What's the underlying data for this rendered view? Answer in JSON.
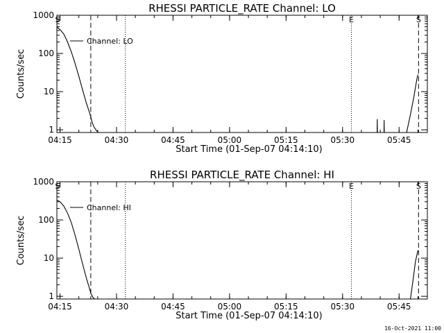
{
  "footer_timestamp": "16-Oct-2021 11:00",
  "chart_data": [
    {
      "type": "line",
      "title": "RHESSI PARTICLE_RATE Channel: LO",
      "xlabel": "Start Time (01-Sep-07 04:14:10)",
      "ylabel": "Counts/sec",
      "yscale": "log",
      "xlim": [
        "04:14:10",
        "05:52:30"
      ],
      "ylim": [
        0.85,
        1000
      ],
      "x_ticks": [
        "04:15",
        "04:30",
        "04:45",
        "05:00",
        "05:15",
        "05:30",
        "05:45"
      ],
      "y_ticks": [
        "1",
        "10",
        "100",
        "1000"
      ],
      "legend": "Channel: LO",
      "series": [
        {
          "name": "Channel: LO",
          "segments": [
            {
              "x": [
                "04:14:10",
                "04:15:00",
                "04:16:00",
                "04:17:00",
                "04:18:00",
                "04:19:00",
                "04:20:00",
                "04:21:00",
                "04:22:00",
                "04:23:00",
                "04:23:30",
                "04:24:00",
                "04:24:30",
                "04:25:00",
                "04:25:15"
              ],
              "y": [
                490,
                420,
                320,
                200,
                110,
                55,
                25,
                11,
                5,
                2.5,
                1.6,
                1.2,
                1.0,
                0.88,
                0.85
              ]
            },
            {
              "x": [
                "05:39:10",
                "05:39:12",
                "05:39:14"
              ],
              "y": [
                0.85,
                1.9,
                0.85
              ]
            },
            {
              "x": [
                "05:41:00",
                "05:41:02",
                "05:41:04"
              ],
              "y": [
                0.85,
                1.8,
                0.85
              ]
            },
            {
              "x": [
                "05:47:00",
                "05:48:00",
                "05:49:00",
                "05:49:40",
                "05:50:00"
              ],
              "y": [
                0.85,
                2.5,
                8,
                20,
                28
              ]
            }
          ]
        }
      ],
      "vlines_dashed": [
        "04:23:10",
        "05:50:10"
      ],
      "vlines_dotted": [
        "04:32:20",
        "05:32:20"
      ],
      "markers": [
        {
          "label": "S",
          "x": "04:14:20"
        },
        {
          "label": "E",
          "x": "05:32:20"
        },
        {
          "label": "S",
          "x": "05:50:10"
        }
      ]
    },
    {
      "type": "line",
      "title": "RHESSI PARTICLE_RATE Channel: HI",
      "xlabel": "Start Time (01-Sep-07 04:14:10)",
      "ylabel": "Counts/sec",
      "yscale": "log",
      "xlim": [
        "04:14:10",
        "05:52:30"
      ],
      "ylim": [
        0.85,
        1000
      ],
      "x_ticks": [
        "04:15",
        "04:30",
        "04:45",
        "05:00",
        "05:15",
        "05:30",
        "05:45"
      ],
      "y_ticks": [
        "1",
        "10",
        "100",
        "1000"
      ],
      "legend": "Channel: HI",
      "series": [
        {
          "name": "Channel: HI",
          "segments": [
            {
              "x": [
                "04:14:10",
                "04:15:00",
                "04:16:00",
                "04:17:00",
                "04:18:00",
                "04:19:00",
                "04:20:00",
                "04:21:00",
                "04:22:00",
                "04:22:40",
                "04:23:10",
                "04:23:40",
                "04:24:10"
              ],
              "y": [
                330,
                300,
                230,
                150,
                85,
                40,
                17,
                7,
                3,
                1.8,
                1.2,
                0.95,
                0.85
              ]
            },
            {
              "x": [
                "05:48:00",
                "05:48:40",
                "05:49:20",
                "05:50:00"
              ],
              "y": [
                0.85,
                2.5,
                8,
                16
              ]
            }
          ]
        }
      ],
      "vlines_dashed": [
        "04:23:10",
        "05:50:10"
      ],
      "vlines_dotted": [
        "04:32:20",
        "05:32:20"
      ],
      "markers": [
        {
          "label": "S",
          "x": "04:14:20"
        },
        {
          "label": "E",
          "x": "05:32:20"
        },
        {
          "label": "S",
          "x": "05:50:10"
        }
      ]
    }
  ]
}
